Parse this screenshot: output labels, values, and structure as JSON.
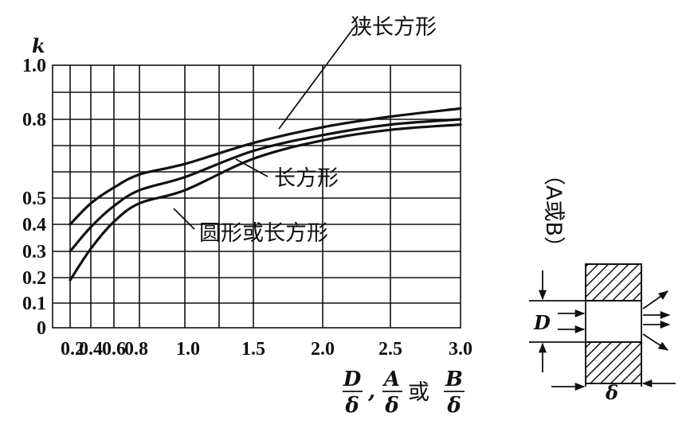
{
  "chart_data": {
    "type": "line",
    "ylabel": "k",
    "xlabel": {
      "num1": "D",
      "den1": "δ",
      "sep1": ",",
      "num2": "A",
      "den2": "δ",
      "word": "或",
      "num3": "B",
      "den3": "δ"
    },
    "x_ticks": [
      {
        "v": 0.2,
        "label": "0.2"
      },
      {
        "v": 0.4,
        "label": "0.4"
      },
      {
        "v": 0.6,
        "label": "0.6"
      },
      {
        "v": 0.8,
        "label": "0.8"
      },
      {
        "v": 1.0,
        "label": "1.0"
      },
      {
        "v": 1.5,
        "label": "1.5"
      },
      {
        "v": 2.0,
        "label": "2.0"
      },
      {
        "v": 2.5,
        "label": "2.5"
      },
      {
        "v": 3.0,
        "label": "3.0"
      }
    ],
    "y_ticks": [
      {
        "v": 0,
        "label": "0"
      },
      {
        "v": 0.1,
        "label": "0.1"
      },
      {
        "v": 0.2,
        "label": "0.2"
      },
      {
        "v": 0.3,
        "label": "0.3"
      },
      {
        "v": 0.4,
        "label": "0.4"
      },
      {
        "v": 0.5,
        "label": "0.5"
      },
      {
        "v": 0.8,
        "label": "0.8"
      },
      {
        "v": 1.0,
        "label": "1.0"
      }
    ],
    "xlim": [
      0.15,
      3.0
    ],
    "ylim": [
      0,
      1.0
    ],
    "grid": true,
    "series": [
      {
        "name": "狭长方形",
        "x": [
          0.2,
          0.4,
          0.6,
          0.8,
          1.0,
          1.5,
          2.0,
          2.5,
          3.0
        ],
        "y": [
          0.4,
          0.48,
          0.54,
          0.59,
          0.63,
          0.71,
          0.77,
          0.81,
          0.84
        ]
      },
      {
        "name": "长方形",
        "x": [
          0.2,
          0.4,
          0.6,
          0.8,
          1.0,
          1.5,
          2.0,
          2.5,
          3.0
        ],
        "y": [
          0.3,
          0.39,
          0.47,
          0.53,
          0.58,
          0.68,
          0.74,
          0.78,
          0.8
        ]
      },
      {
        "name": "圆形或长方形",
        "x": [
          0.2,
          0.4,
          0.6,
          0.8,
          1.0,
          1.5,
          2.0,
          2.5,
          3.0
        ],
        "y": [
          0.19,
          0.31,
          0.41,
          0.48,
          0.53,
          0.65,
          0.72,
          0.76,
          0.78
        ]
      }
    ]
  },
  "diagram": {
    "side_label": "（A或B）",
    "height_label": "D",
    "thickness_label": "δ"
  }
}
